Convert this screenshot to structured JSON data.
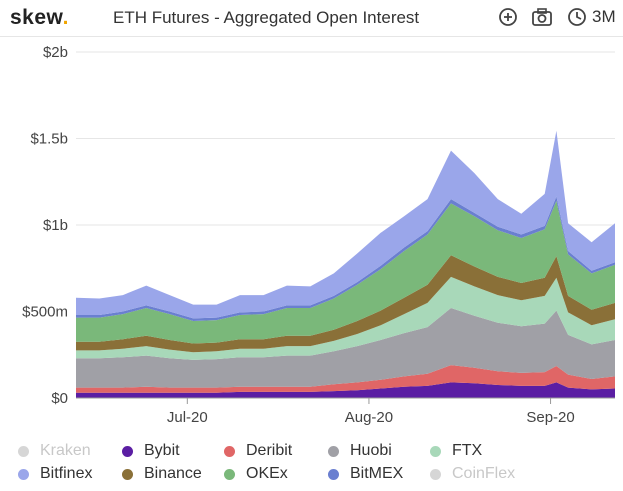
{
  "header": {
    "logo_text": "skew",
    "logo_dot": ".",
    "title": "ETH Futures - Aggregated Open Interest",
    "range_label": "3M",
    "icons": [
      "zoom-in-icon",
      "camera-icon",
      "clock-icon"
    ]
  },
  "colors": {
    "Kraken": "#d0d0d0",
    "Bybit": "#5b1ea3",
    "Deribit": "#e06666",
    "Huobi": "#a0a0a6",
    "FTX": "#a8d8b9",
    "Bitfinex": "#9aa6ea",
    "Binance": "#8a7038",
    "OKEx": "#7ab87a",
    "BitMEX": "#6a7fd0",
    "CoinFlex": "#c4c4c4"
  },
  "chart_data": {
    "type": "area",
    "stacked": true,
    "title": "ETH Futures - Aggregated Open Interest",
    "xlabel": "",
    "ylabel": "",
    "ylim": [
      0,
      2000000000
    ],
    "y_ticks": [
      {
        "value": 0,
        "label": "$0"
      },
      {
        "value": 500000000,
        "label": "$500m"
      },
      {
        "value": 1000000000,
        "label": "$1b"
      },
      {
        "value": 1500000000,
        "label": "$1.5b"
      },
      {
        "value": 2000000000,
        "label": "$2b"
      }
    ],
    "x_ticks": [
      {
        "x": "2020-07-01",
        "label": "Jul-20"
      },
      {
        "x": "2020-08-01",
        "label": "Aug-20"
      },
      {
        "x": "2020-09-01",
        "label": "Sep-20"
      }
    ],
    "x": [
      "2020-06-12",
      "2020-06-16",
      "2020-06-20",
      "2020-06-24",
      "2020-06-28",
      "2020-07-02",
      "2020-07-06",
      "2020-07-10",
      "2020-07-14",
      "2020-07-18",
      "2020-07-22",
      "2020-07-26",
      "2020-07-30",
      "2020-08-03",
      "2020-08-07",
      "2020-08-11",
      "2020-08-15",
      "2020-08-19",
      "2020-08-23",
      "2020-08-27",
      "2020-08-31",
      "2020-09-02",
      "2020-09-04",
      "2020-09-08",
      "2020-09-12"
    ],
    "legend_position": "bottom",
    "grid": "horizontal",
    "series": [
      {
        "name": "Bybit",
        "values": [
          30,
          30,
          30,
          30,
          30,
          30,
          30,
          35,
          35,
          35,
          35,
          40,
          45,
          55,
          65,
          70,
          90,
          85,
          75,
          70,
          70,
          90,
          60,
          50,
          55
        ]
      },
      {
        "name": "Deribit",
        "values": [
          30,
          30,
          30,
          35,
          30,
          30,
          30,
          30,
          30,
          30,
          30,
          40,
          45,
          50,
          60,
          70,
          100,
          90,
          80,
          75,
          80,
          95,
          75,
          60,
          70
        ]
      },
      {
        "name": "Huobi",
        "values": [
          170,
          170,
          175,
          180,
          170,
          160,
          165,
          170,
          170,
          180,
          180,
          190,
          210,
          230,
          250,
          270,
          330,
          300,
          280,
          270,
          280,
          320,
          230,
          200,
          210
        ]
      },
      {
        "name": "FTX",
        "values": [
          45,
          45,
          50,
          55,
          50,
          45,
          45,
          50,
          50,
          55,
          55,
          60,
          70,
          85,
          110,
          140,
          180,
          170,
          160,
          150,
          160,
          190,
          130,
          110,
          120
        ]
      },
      {
        "name": "Binance",
        "values": [
          50,
          50,
          55,
          60,
          55,
          50,
          50,
          55,
          55,
          60,
          60,
          65,
          75,
          85,
          95,
          105,
          125,
          115,
          105,
          100,
          105,
          125,
          95,
          90,
          95
        ]
      },
      {
        "name": "OKEx",
        "values": [
          140,
          140,
          145,
          160,
          150,
          130,
          130,
          140,
          145,
          160,
          160,
          180,
          210,
          240,
          270,
          290,
          300,
          290,
          270,
          260,
          280,
          320,
          240,
          210,
          220
        ]
      },
      {
        "name": "BitMEX",
        "values": [
          15,
          15,
          15,
          15,
          15,
          15,
          15,
          15,
          15,
          15,
          15,
          15,
          15,
          20,
          20,
          20,
          25,
          20,
          20,
          20,
          20,
          25,
          20,
          15,
          15
        ]
      },
      {
        "name": "Bitfinex",
        "values": [
          100,
          95,
          95,
          115,
          95,
          80,
          75,
          100,
          95,
          115,
          110,
          130,
          165,
          190,
          180,
          185,
          280,
          230,
          160,
          120,
          185,
          380,
          160,
          165,
          225
        ]
      }
    ],
    "value_unit": "millions USD",
    "legend": [
      {
        "name": "Kraken",
        "visible": false
      },
      {
        "name": "Bybit",
        "visible": true
      },
      {
        "name": "Deribit",
        "visible": true
      },
      {
        "name": "Huobi",
        "visible": true
      },
      {
        "name": "FTX",
        "visible": true
      },
      {
        "name": "Bitfinex",
        "visible": true
      },
      {
        "name": "Binance",
        "visible": true
      },
      {
        "name": "OKEx",
        "visible": true
      },
      {
        "name": "BitMEX",
        "visible": true
      },
      {
        "name": "CoinFlex",
        "visible": false
      }
    ]
  }
}
